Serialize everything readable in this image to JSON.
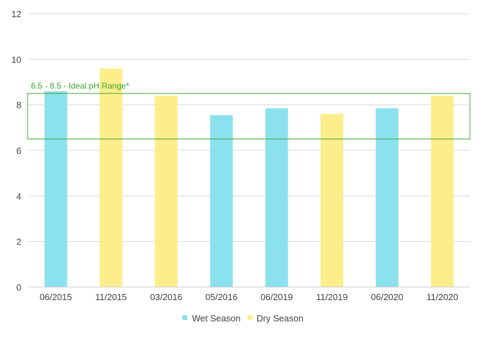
{
  "chart_data": {
    "type": "bar",
    "categories": [
      "06/2015",
      "11/2015",
      "03/2016",
      "05/2016",
      "06/2019",
      "11/2019",
      "06/2020",
      "11/2020"
    ],
    "values": [
      8.6,
      9.6,
      8.4,
      7.55,
      7.85,
      7.6,
      7.85,
      8.4
    ],
    "season": [
      "Wet Season",
      "Dry Season",
      "Dry Season",
      "Wet Season",
      "Wet Season",
      "Dry Season",
      "Wet Season",
      "Dry Season"
    ],
    "series": [
      {
        "name": "Wet Season",
        "color": "#8be1ee"
      },
      {
        "name": "Dry Season",
        "color": "#fdee8c"
      }
    ],
    "ylim": [
      0,
      12
    ],
    "yticks": [
      0,
      2,
      4,
      6,
      8,
      10,
      12
    ],
    "grid": true,
    "legend": "bottom",
    "annotation": {
      "label": "6.5 - 8.5 - Ideal pH Range*",
      "range": [
        6.5,
        8.5
      ],
      "color": "#3aa52a"
    }
  }
}
